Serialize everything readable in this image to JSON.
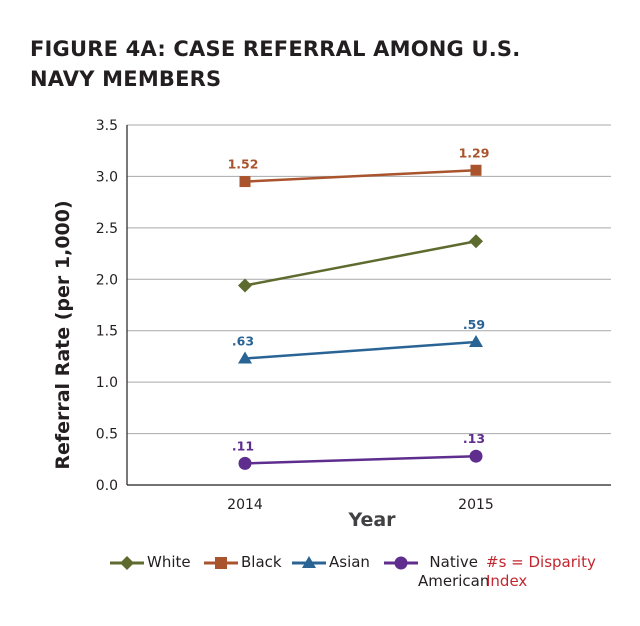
{
  "title": "FIGURE 4A: CASE REFERRAL AMONG U.S. NAVY MEMBERS",
  "colors": {
    "White": "#5d6b2e",
    "Black": "#a9542c",
    "Asian": "#2a6495",
    "Native American": "#5e2d8e",
    "note": "#c3262f",
    "grid": "#a7a9ac",
    "axis": "#231f20"
  },
  "note_text": "#s = Disparity\nIndex",
  "chart_data": {
    "type": "line",
    "title": "FIGURE 4A: CASE REFERRAL AMONG U.S. NAVY MEMBERS",
    "xlabel": "Year",
    "ylabel": "Referral Rate (per 1,000)",
    "categories": [
      "2014",
      "2015"
    ],
    "ylim": [
      0,
      3.5
    ],
    "yticks": [
      "0.0",
      "0.5",
      "1.0",
      "1.5",
      "2.0",
      "2.5",
      "3.0",
      "3.5"
    ],
    "grid": true,
    "legend": "bottom",
    "series": [
      {
        "name": "White",
        "marker": "diamond",
        "values": [
          1.94,
          2.37
        ],
        "labels": [
          "",
          ""
        ]
      },
      {
        "name": "Black",
        "marker": "square",
        "values": [
          2.95,
          3.06
        ],
        "labels": [
          "1.52",
          "1.29"
        ]
      },
      {
        "name": "Asian",
        "marker": "triangle",
        "values": [
          1.23,
          1.39
        ],
        "labels": [
          ".63",
          ".59"
        ]
      },
      {
        "name": "Native American",
        "marker": "circle",
        "values": [
          0.21,
          0.28
        ],
        "labels": [
          ".11",
          ".13"
        ]
      }
    ]
  }
}
